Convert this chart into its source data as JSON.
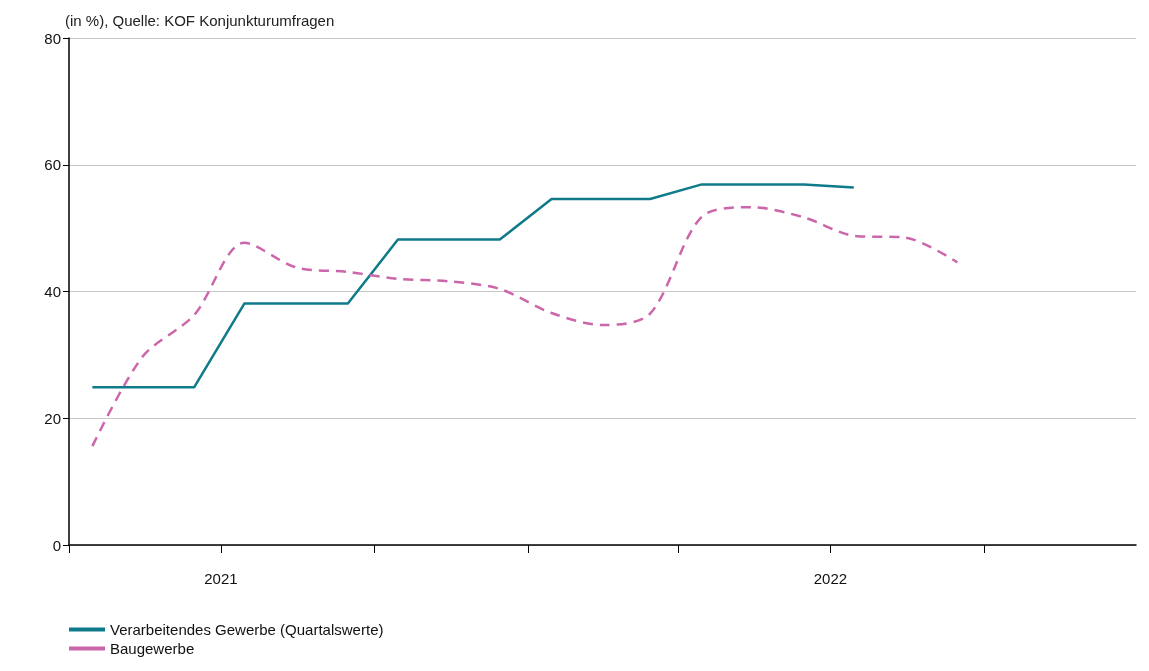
{
  "chart_data": {
    "type": "line",
    "title": "(in %), Quelle: KOF Konjunkturumfragen",
    "xlim": [
      "2021-04-01",
      "2022-12-31"
    ],
    "xticks": [
      {
        "value": "2021-04-01",
        "label": null
      },
      {
        "value": "2021-07-01",
        "label": "2021"
      },
      {
        "value": "2021-10-01",
        "label": null
      },
      {
        "value": "2022-01-01",
        "label": null
      },
      {
        "value": "2022-04-01",
        "label": null
      },
      {
        "value": "2022-07-01",
        "label": "2022"
      },
      {
        "value": "2022-10-01",
        "label": null
      }
    ],
    "ylim": [
      0,
      80
    ],
    "yticks": [
      0,
      20,
      40,
      60,
      80
    ],
    "grid": "y",
    "legend": "bottom left",
    "marker": "none",
    "series": [
      {
        "name": "Verarbeitendes Gewerbe (Quartalswerte)",
        "color": "#0f7a8a",
        "line_style": "solid",
        "x": [
          "2021-04-15",
          "2021-06-15",
          "2021-07-15",
          "2021-09-15",
          "2021-10-15",
          "2021-12-15",
          "2022-01-15",
          "2022-03-15",
          "2022-04-15",
          "2022-06-15",
          "2022-07-15"
        ],
        "values": [
          24.9,
          24.9,
          38.1,
          38.1,
          48.2,
          48.2,
          54.6,
          54.6,
          56.9,
          56.9,
          56.4
        ]
      },
      {
        "name": "Baugewerbe",
        "color": "#cc66aa",
        "line_style": "dashed",
        "x": [
          "2021-04-15",
          "2021-05-15",
          "2021-06-15",
          "2021-07-15",
          "2021-08-15",
          "2021-09-15",
          "2021-10-15",
          "2021-11-15",
          "2021-12-15",
          "2022-01-15",
          "2022-02-15",
          "2022-03-15",
          "2022-04-15",
          "2022-05-15",
          "2022-06-15",
          "2022-07-15",
          "2022-08-15",
          "2022-09-15"
        ],
        "values": [
          15.6,
          29.7,
          36.3,
          47.7,
          43.8,
          43.1,
          42.0,
          41.6,
          40.4,
          36.6,
          34.7,
          36.5,
          51.8,
          53.3,
          51.7,
          48.8,
          48.5,
          44.6
        ]
      }
    ]
  }
}
